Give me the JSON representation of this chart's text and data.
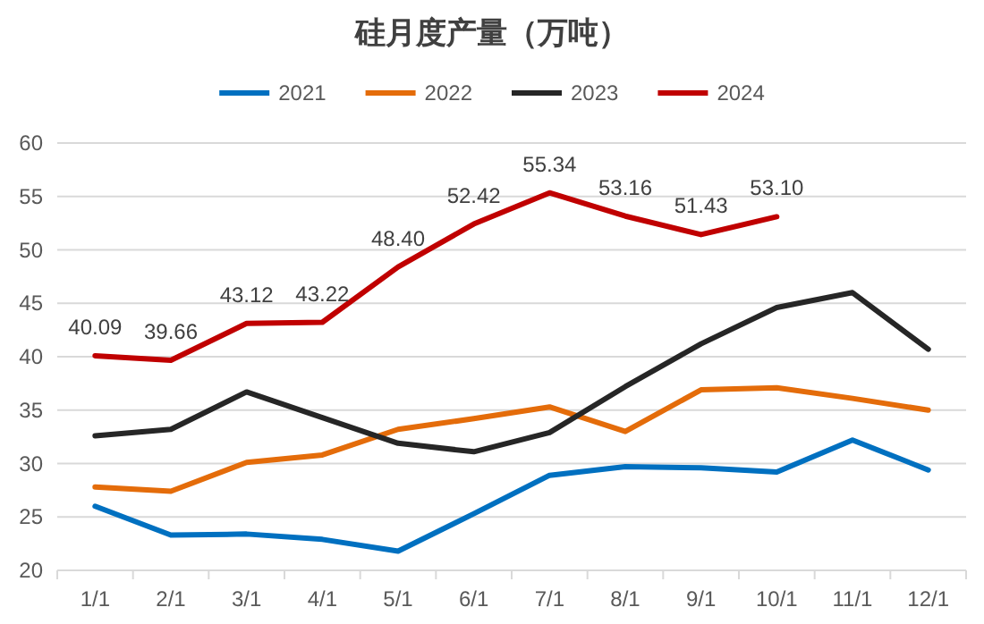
{
  "chart_data": {
    "type": "line",
    "title": "硅月度产量（万吨）",
    "categories": [
      "1/1",
      "2/1",
      "3/1",
      "4/1",
      "5/1",
      "6/1",
      "7/1",
      "8/1",
      "9/1",
      "10/1",
      "11/1",
      "12/1"
    ],
    "series": [
      {
        "name": "2021",
        "color": "#0070c0",
        "values": [
          26.0,
          23.3,
          23.4,
          22.9,
          21.8,
          25.3,
          28.9,
          29.7,
          29.6,
          29.2,
          32.2,
          29.4
        ]
      },
      {
        "name": "2022",
        "color": "#e46c0a",
        "values": [
          27.8,
          27.4,
          30.1,
          30.8,
          33.2,
          34.2,
          35.3,
          33.0,
          36.9,
          37.1,
          36.1,
          35.0
        ]
      },
      {
        "name": "2023",
        "color": "#262626",
        "values": [
          32.6,
          33.2,
          36.7,
          34.3,
          31.9,
          31.1,
          32.9,
          37.2,
          41.2,
          44.6,
          46.0,
          40.7
        ]
      },
      {
        "name": "2024",
        "color": "#c00000",
        "values": [
          40.09,
          39.66,
          43.12,
          43.22,
          48.4,
          52.42,
          55.34,
          53.16,
          51.43,
          53.1,
          null,
          null
        ],
        "value_labels": [
          "40.09",
          "39.66",
          "43.12",
          "43.22",
          "48.40",
          "52.42",
          "55.34",
          "53.16",
          "51.43",
          "53.10",
          null,
          null
        ]
      }
    ],
    "ylim": [
      20,
      60
    ],
    "yticks": [
      20,
      25,
      30,
      35,
      40,
      45,
      50,
      55,
      60
    ],
    "grid": "y",
    "legend": "top",
    "marker": "none",
    "line_style": "solid"
  }
}
